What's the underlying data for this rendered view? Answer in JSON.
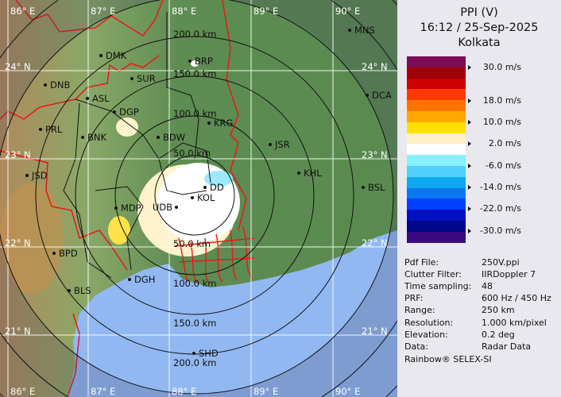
{
  "header": {
    "product": "PPI (V)",
    "datetime": "16:12 / 25-Sep-2025",
    "station": "Kolkata"
  },
  "legend": {
    "unit": "m/s",
    "colors": [
      "#7c0c56",
      "#a00008",
      "#cc0000",
      "#ff3a00",
      "#ff7400",
      "#ffa800",
      "#ffe000",
      "#fff0c8",
      "#ffffff",
      "#88f0ff",
      "#50d0ff",
      "#10a8f0",
      "#0a78f0",
      "#0040ff",
      "#0010c0",
      "#000888",
      "#3a0a80"
    ],
    "ticks": [
      "30.0 m/s",
      "18.0 m/s",
      "10.0 m/s",
      "2.0 m/s",
      "-6.0 m/s",
      "-14.0 m/s",
      "-22.0 m/s",
      "-30.0 m/s"
    ]
  },
  "info": [
    {
      "label": "Pdf File:",
      "value": "250V.ppi"
    },
    {
      "label": "Clutter Filter:",
      "value": "IIRDoppler 7"
    },
    {
      "label": "Time sampling:",
      "value": "48"
    },
    {
      "label": "PRF:",
      "value": "600 Hz / 450 Hz"
    },
    {
      "label": "Range:",
      "value": "250 km"
    },
    {
      "label": "Resolution:",
      "value": "1.000 km/pixel"
    },
    {
      "label": "Elevation:",
      "value": "0.2 deg"
    },
    {
      "label": "Data:",
      "value": "Radar Data"
    }
  ],
  "credit": "Rainbow® SELEX-SI",
  "map": {
    "range_rings": [
      "50.0 km",
      "100.0 km",
      "150.0 km",
      "200.0 km"
    ],
    "longitudes": [
      "86° E",
      "87° E",
      "88° E",
      "89° E",
      "90° E"
    ],
    "latitudes": [
      "24° N",
      "23° N",
      "22° N",
      "21° N"
    ],
    "cities": [
      "MNS",
      "DMK",
      "BRP",
      "DNB",
      "SUR",
      "ASL",
      "DCA",
      "DGP",
      "KRG",
      "PRL",
      "BNK",
      "BDW",
      "JSR",
      "KHL",
      "JSD",
      "BSL",
      "DD",
      "KOL",
      "MDP",
      "UDB",
      "BPD",
      "DGH",
      "BLS",
      "SHD"
    ],
    "colors": {
      "land": "#5e8c52",
      "sea": "#92b8f2",
      "border_state": "#e81818",
      "border_district": "#111111",
      "grid": "#ffffff"
    }
  }
}
